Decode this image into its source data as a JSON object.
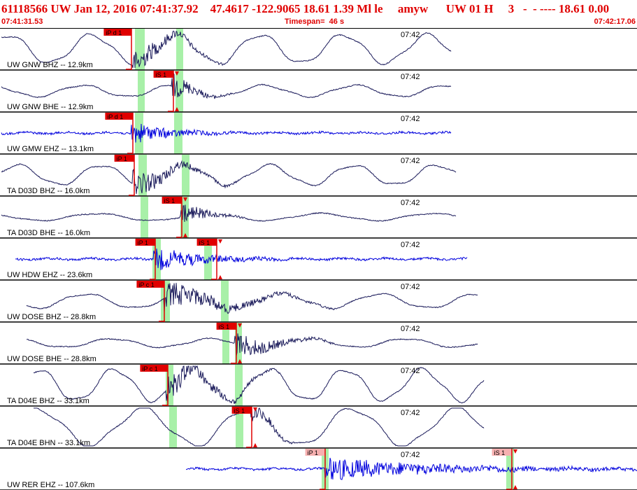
{
  "header": {
    "title": "61118566 UW Jan 12, 2016 07:41:37.92    47.4617 -122.9065 18.61 1.39 Ml le     amyw      UW 01 H     3   -  - ---- 18.61 0.00",
    "start_time": "07:41:31.53",
    "timespan": "Timespan=  46 s",
    "end_time": "07:42:17.06"
  },
  "time_marker": "07:42",
  "colors": {
    "accent": "#e00000",
    "trace_bhz": "#1a1a5a",
    "trace_ehz": "#0000dd",
    "window": "#a8f0a8",
    "pick": "#e00000"
  },
  "channels": [
    {
      "label": "UW GNW BHZ -- 12.9km",
      "type": "bhz",
      "picks": [
        {
          "label": "iP d 1",
          "kind": "P"
        }
      ]
    },
    {
      "label": "UW GNW BHE -- 12.9km",
      "type": "bhz",
      "picks": [
        {
          "label": "iS 1",
          "kind": "S"
        }
      ]
    },
    {
      "label": "UW GMW EHZ -- 13.1km",
      "type": "ehz",
      "picks": [
        {
          "label": "iP d 1",
          "kind": "P"
        }
      ]
    },
    {
      "label": "TA D03D BHZ -- 16.0km",
      "type": "bhz",
      "picks": [
        {
          "label": "iP 1",
          "kind": "P"
        }
      ]
    },
    {
      "label": "TA D03D BHE -- 16.0km",
      "type": "bhz",
      "picks": [
        {
          "label": "iS 1",
          "kind": "S"
        }
      ]
    },
    {
      "label": "UW HDW EHZ -- 23.6km",
      "type": "ehz",
      "picks": [
        {
          "label": "iP 1",
          "kind": "P"
        },
        {
          "label": "iS 1",
          "kind": "S"
        }
      ]
    },
    {
      "label": "UW DOSE BHZ -- 28.8km",
      "type": "bhz",
      "picks": [
        {
          "label": "iP c 1",
          "kind": "P"
        }
      ]
    },
    {
      "label": "UW DOSE BHE -- 28.8km",
      "type": "bhz",
      "picks": [
        {
          "label": "iS 1",
          "kind": "S"
        }
      ]
    },
    {
      "label": "TA D04E BHZ -- 33.1km",
      "type": "bhz",
      "picks": [
        {
          "label": "iP c 1",
          "kind": "P"
        }
      ]
    },
    {
      "label": "TA D04E BHN -- 33.1km",
      "type": "bhz",
      "picks": [
        {
          "label": "iS 1",
          "kind": "S"
        }
      ]
    },
    {
      "label": "UW RER EHZ -- 107.6km",
      "type": "ehz",
      "picks": [
        {
          "label": "iP 1",
          "kind": "P"
        },
        {
          "label": "iS 1",
          "kind": "S"
        }
      ]
    }
  ]
}
